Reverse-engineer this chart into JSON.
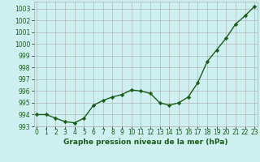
{
  "x": [
    0,
    1,
    2,
    3,
    4,
    5,
    6,
    7,
    8,
    9,
    10,
    11,
    12,
    13,
    14,
    15,
    16,
    17,
    18,
    19,
    20,
    21,
    22,
    23
  ],
  "y": [
    994.0,
    994.0,
    993.7,
    993.4,
    993.3,
    993.7,
    994.8,
    995.2,
    995.5,
    995.7,
    996.1,
    996.0,
    995.8,
    995.0,
    994.8,
    995.0,
    995.5,
    996.7,
    998.5,
    999.5,
    1000.5,
    1001.7,
    1002.4,
    1003.2
  ],
  "line_color": "#1a5c1a",
  "marker": "D",
  "marker_size": 2.2,
  "bg_color": "#cff0f0",
  "grid_color": "#aaaaaa",
  "ylabel_ticks": [
    993,
    994,
    995,
    996,
    997,
    998,
    999,
    1000,
    1001,
    1002,
    1003
  ],
  "xlim": [
    -0.3,
    23.3
  ],
  "ylim": [
    993.0,
    1003.6
  ],
  "xlabel": "Graphe pression niveau de la mer (hPa)",
  "xlabel_fontsize": 6.5,
  "tick_fontsize": 5.5,
  "line_width": 1.0
}
